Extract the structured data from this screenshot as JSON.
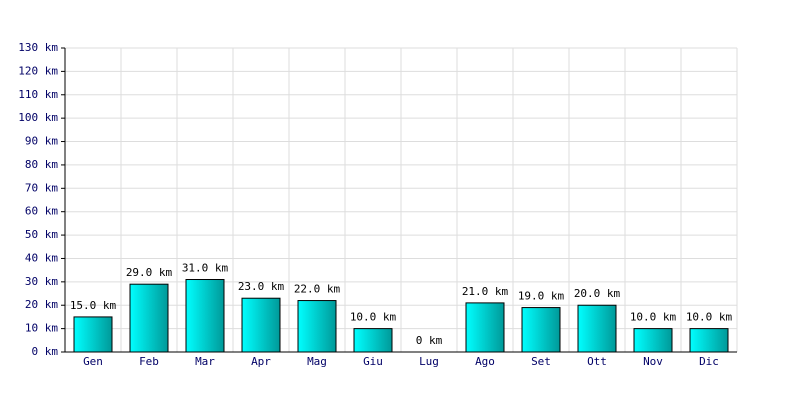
{
  "chart_data": {
    "type": "bar",
    "categories": [
      "Gen",
      "Feb",
      "Mar",
      "Apr",
      "Mag",
      "Giu",
      "Lug",
      "Ago",
      "Set",
      "Ott",
      "Nov",
      "Dic"
    ],
    "values": [
      15,
      29,
      31,
      23,
      22,
      10,
      0,
      21,
      19,
      20,
      10,
      10
    ],
    "value_labels": [
      "15.0 km",
      "29.0 km",
      "31.0 km",
      "23.0 km",
      "22.0 km",
      "10.0 km",
      "0 km",
      "21.0 km",
      "19.0 km",
      "20.0 km",
      "10.0 km",
      "10.0 km"
    ],
    "color": "#00cccc",
    "ylim": [
      0,
      130
    ],
    "yticks": [
      {
        "value": 0,
        "label": "0 km"
      },
      {
        "value": 10,
        "label": "10 km"
      },
      {
        "value": 20,
        "label": "20 km"
      },
      {
        "value": 30,
        "label": "30 km"
      },
      {
        "value": 40,
        "label": "40 km"
      },
      {
        "value": 50,
        "label": "50 km"
      },
      {
        "value": 60,
        "label": "60 km"
      },
      {
        "value": 70,
        "label": "70 km"
      },
      {
        "value": 80,
        "label": "80 km"
      },
      {
        "value": 90,
        "label": "90 km"
      },
      {
        "value": 100,
        "label": "100 km"
      },
      {
        "value": 110,
        "label": "110 km"
      },
      {
        "value": 120,
        "label": "120 km"
      },
      {
        "value": 130,
        "label": "130 km"
      }
    ],
    "grid": true
  }
}
